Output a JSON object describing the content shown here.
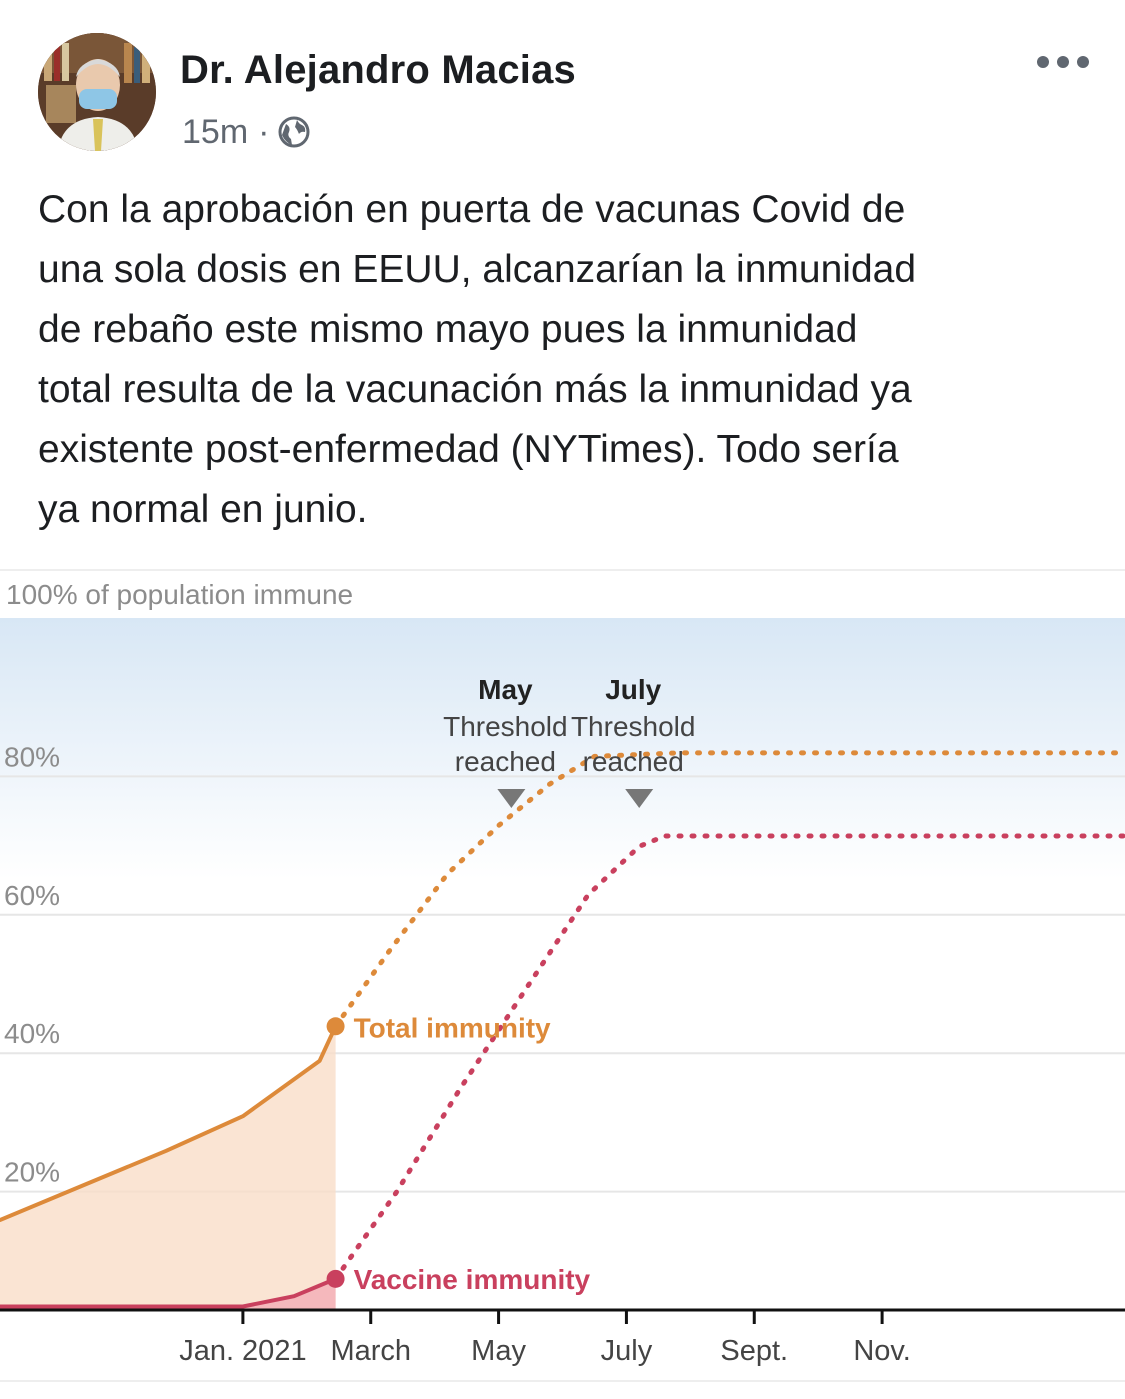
{
  "post": {
    "author": "Dr. Alejandro Macias",
    "timestamp": "15m",
    "separator": "·",
    "privacy_icon": "globe-icon",
    "more_icon": "more-options-icon",
    "text": "Con la aprobación en puerta de vacunas Covid de\nuna sola dosis en EEUU, alcanzarían la inmunidad\nde rebaño este mismo mayo pues la inmunidad\ntotal resulta de la vacunación más la inmunidad ya\nexistente post-enfermedad (NYTimes). Todo sería\nya normal en junio."
  },
  "colors": {
    "total": "#dd8a3a",
    "vaccine": "#c9405e",
    "total_fill": "#f9ddc8",
    "vaccine_fill": "#f4b3b9",
    "band": "#d8e7f5",
    "grid": "#e6e6e6",
    "tick_text": "#8c8c8c",
    "axis_text": "#444444"
  },
  "chart_data": {
    "type": "line",
    "title": "100% of population immune",
    "y_ticks": [
      "80%",
      "60%",
      "40%",
      "20%"
    ],
    "y_tick_values": [
      80,
      60,
      40,
      20
    ],
    "ylim": [
      0,
      100
    ],
    "x_ticks": [
      "Jan. 2021",
      "March",
      "May",
      "July",
      "Sept.",
      "Nov."
    ],
    "x_tick_months": [
      0,
      2,
      4,
      6,
      8,
      10
    ],
    "xlim_months": [
      -3.8,
      13.8
    ],
    "threshold_band": [
      68,
      100
    ],
    "series": [
      {
        "name": "Total immunity",
        "style": "solid",
        "points": [
          [
            -3.8,
            13
          ],
          [
            -2.5,
            18
          ],
          [
            -1.2,
            23
          ],
          [
            0,
            28
          ],
          [
            1.2,
            36
          ],
          [
            1.45,
            41
          ]
        ]
      },
      {
        "name": "Total immunity",
        "style": "dotted",
        "points": [
          [
            1.45,
            41
          ],
          [
            2.3,
            52
          ],
          [
            3.2,
            63
          ],
          [
            4,
            70
          ],
          [
            4.8,
            76
          ],
          [
            5.5,
            80
          ],
          [
            6.8,
            80.5
          ],
          [
            13.8,
            80.5
          ]
        ]
      },
      {
        "name": "Vaccine immunity",
        "style": "solid",
        "points": [
          [
            -3.8,
            0.5
          ],
          [
            0,
            0.5
          ],
          [
            0.8,
            2
          ],
          [
            1.45,
            4.5
          ]
        ]
      },
      {
        "name": "Vaccine immunity",
        "style": "dotted",
        "points": [
          [
            1.45,
            4.5
          ],
          [
            2.4,
            17
          ],
          [
            3.4,
            32
          ],
          [
            4.4,
            46
          ],
          [
            5.4,
            60
          ],
          [
            6.2,
            67
          ],
          [
            6.6,
            68.5
          ],
          [
            13.8,
            68.5
          ]
        ]
      }
    ],
    "labels": [
      {
        "text": "Total immunity",
        "series": "total"
      },
      {
        "text": "Vaccine immunity",
        "series": "vaccine"
      }
    ],
    "annotations": [
      {
        "title": "May",
        "line1": "Threshold",
        "line2": "reached",
        "month": 4.2
      },
      {
        "title": "July",
        "line1": "Threshold",
        "line2": "reached",
        "month": 6.2
      }
    ]
  }
}
